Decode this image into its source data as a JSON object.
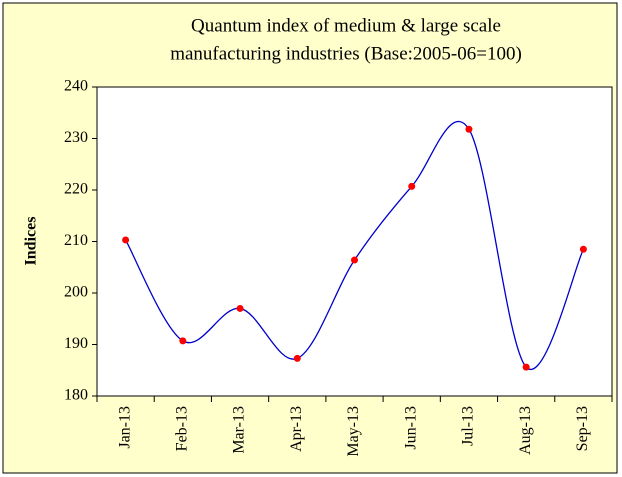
{
  "chart_data": {
    "type": "line",
    "title": [
      "Quantum index of medium & large scale",
      "manufacturing  industries (Base:2005-06=100)"
    ],
    "y_label": "Indices",
    "categories": [
      "Jan-13",
      "Feb-13",
      "Mar-13",
      "Apr-13",
      "May-13",
      "Jun-13",
      "Jul-13",
      "Aug-13",
      "Sep-13"
    ],
    "series": [
      {
        "line_color": "#0000cc",
        "color": "#ff0000",
        "values": [
          210.3,
          190.7,
          197,
          187.3,
          206.4,
          220.7,
          231.8,
          185.6,
          208.5
        ]
      }
    ],
    "ylim": [
      180,
      240
    ],
    "yticks": [
      180,
      190,
      200,
      210,
      220,
      230,
      240
    ],
    "smooth": true
  }
}
